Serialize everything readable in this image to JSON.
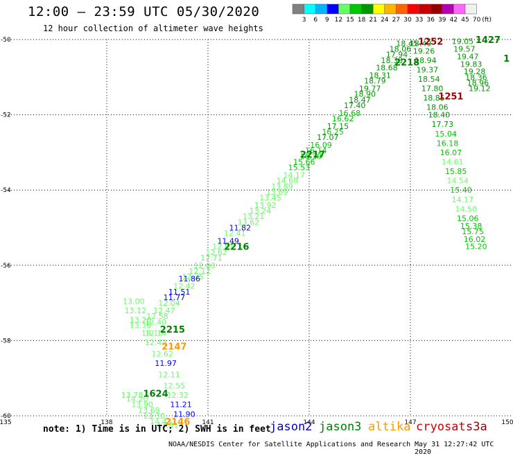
{
  "header": {
    "title": "12:00 – 23:59 UTC 05/30/2020",
    "subtitle": "12 hour collection of altimeter wave heights"
  },
  "footer": {
    "note": "note: 1) Time is in UTC; 2) SWH is in feet",
    "credit": "NOAA/NESDIS Center for Satellite Applications and Research",
    "timestamp": "May 31 12:27:42 UTC 2020"
  },
  "legend_scale": {
    "labels": [
      "3",
      "6",
      "9",
      "12",
      "15",
      "18",
      "21",
      "24",
      "27",
      "30",
      "33",
      "36",
      "39",
      "42",
      "45",
      "70",
      "(ft)"
    ],
    "colors": [
      "#808080",
      "#00ffff",
      "#00b4ff",
      "#0000ff",
      "#64ff64",
      "#00c800",
      "#009600",
      "#ffff00",
      "#ffb400",
      "#ff6400",
      "#ff0000",
      "#c80000",
      "#960000",
      "#b400b4",
      "#ff64ff",
      "#f0f0f0",
      "#000000"
    ]
  },
  "satellites": [
    {
      "name": "jason2",
      "color": "#0000cc"
    },
    {
      "name": "jason3",
      "color": "#008000"
    },
    {
      "name": "altika",
      "color": "#ff9900"
    },
    {
      "name": "cryosat",
      "color": "#cc0000"
    },
    {
      "name": "s3a",
      "color": "#990000"
    }
  ],
  "chart_data": {
    "type": "scatter",
    "x_label": "",
    "y_label": "",
    "xlim": [
      135,
      150
    ],
    "ylim": [
      -60,
      -50
    ],
    "x_ticks": [
      "135",
      "138",
      "141",
      "144",
      "147",
      "150"
    ],
    "y_ticks": [
      "-50",
      "-52",
      "-54",
      "-56",
      "-58",
      "-60"
    ],
    "grid": true,
    "points": [
      {
        "lon": 146.9,
        "lat": -50.1,
        "text": "18.45",
        "color": "#009600"
      },
      {
        "lon": 146.7,
        "lat": -50.25,
        "text": "18.06",
        "color": "#009600"
      },
      {
        "lon": 146.6,
        "lat": -50.4,
        "text": "17.94",
        "color": "#009600"
      },
      {
        "lon": 146.45,
        "lat": -50.55,
        "text": "18.38",
        "color": "#009600"
      },
      {
        "lon": 146.3,
        "lat": -50.75,
        "text": "18.68",
        "color": "#009600"
      },
      {
        "lon": 146.1,
        "lat": -50.95,
        "text": "18.31",
        "color": "#009600"
      },
      {
        "lon": 145.95,
        "lat": -51.1,
        "text": "18.79",
        "color": "#009600"
      },
      {
        "lon": 145.8,
        "lat": -51.3,
        "text": "19.77",
        "color": "#009600"
      },
      {
        "lon": 145.65,
        "lat": -51.45,
        "text": "18.90",
        "color": "#009600"
      },
      {
        "lon": 145.5,
        "lat": -51.6,
        "text": "18.47",
        "color": "#009600"
      },
      {
        "lon": 145.35,
        "lat": -51.75,
        "text": "17.40",
        "color": "#009600"
      },
      {
        "lon": 145.2,
        "lat": -51.95,
        "text": "16.68",
        "color": "#00c800"
      },
      {
        "lon": 145.0,
        "lat": -52.1,
        "text": "16.62",
        "color": "#00c800"
      },
      {
        "lon": 144.85,
        "lat": -52.3,
        "text": "17.15",
        "color": "#009600"
      },
      {
        "lon": 144.7,
        "lat": -52.45,
        "text": "16.25",
        "color": "#00c800"
      },
      {
        "lon": 144.55,
        "lat": -52.6,
        "text": "17.07",
        "color": "#009600"
      },
      {
        "lon": 144.35,
        "lat": -52.8,
        "text": "16.09",
        "color": "#00c800"
      },
      {
        "lon": 144.2,
        "lat": -52.95,
        "text": "16.14",
        "color": "#00c800"
      },
      {
        "lon": 144.05,
        "lat": -53.1,
        "text": "16.39",
        "color": "#00c800"
      },
      {
        "lon": 143.85,
        "lat": -53.25,
        "text": "15.66",
        "color": "#00c800"
      },
      {
        "lon": 143.7,
        "lat": -53.4,
        "text": "15.53",
        "color": "#00c800"
      },
      {
        "lon": 143.55,
        "lat": -53.6,
        "text": "14.17",
        "color": "#64ff64"
      },
      {
        "lon": 143.35,
        "lat": -53.75,
        "text": "14.68",
        "color": "#64ff64"
      },
      {
        "lon": 143.2,
        "lat": -53.9,
        "text": "13.89",
        "color": "#64ff64"
      },
      {
        "lon": 143.05,
        "lat": -54.05,
        "text": "13.69",
        "color": "#64ff64"
      },
      {
        "lon": 142.85,
        "lat": -54.2,
        "text": "13.45",
        "color": "#64ff64"
      },
      {
        "lon": 142.7,
        "lat": -54.4,
        "text": "13.92",
        "color": "#64ff64"
      },
      {
        "lon": 142.55,
        "lat": -54.55,
        "text": "13.24",
        "color": "#64ff64"
      },
      {
        "lon": 142.35,
        "lat": -54.7,
        "text": "13.21",
        "color": "#64ff64"
      },
      {
        "lon": 142.2,
        "lat": -54.85,
        "text": "13.62",
        "color": "#64ff64"
      },
      {
        "lon": 141.95,
        "lat": -55.0,
        "text": "11.82",
        "color": "#0000ff"
      },
      {
        "lon": 141.8,
        "lat": -55.15,
        "text": "12.41",
        "color": "#64ff64"
      },
      {
        "lon": 141.6,
        "lat": -55.35,
        "text": "11.49",
        "color": "#0000ff"
      },
      {
        "lon": 141.45,
        "lat": -55.5,
        "text": "12.81",
        "color": "#64ff64"
      },
      {
        "lon": 141.25,
        "lat": -55.65,
        "text": "12.62",
        "color": "#64ff64"
      },
      {
        "lon": 141.1,
        "lat": -55.8,
        "text": "12.71",
        "color": "#64ff64"
      },
      {
        "lon": 140.9,
        "lat": -56.0,
        "text": "12.03",
        "color": "#64ff64"
      },
      {
        "lon": 140.75,
        "lat": -56.15,
        "text": "12.12",
        "color": "#64ff64"
      },
      {
        "lon": 140.55,
        "lat": -56.3,
        "text": "12.35",
        "color": "#64ff64"
      },
      {
        "lon": 140.45,
        "lat": -56.35,
        "text": "11.86",
        "color": "#0000ff"
      },
      {
        "lon": 140.3,
        "lat": -56.55,
        "text": "12.42",
        "color": "#64ff64"
      },
      {
        "lon": 140.15,
        "lat": -56.7,
        "text": "11.51",
        "color": "#0000ff"
      },
      {
        "lon": 140.0,
        "lat": -56.85,
        "text": "11.77",
        "color": "#0000ff"
      },
      {
        "lon": 139.85,
        "lat": -57.0,
        "text": "12.04",
        "color": "#64ff64"
      },
      {
        "lon": 139.7,
        "lat": -57.2,
        "text": "12.47",
        "color": "#64ff64"
      },
      {
        "lon": 139.5,
        "lat": -57.35,
        "text": "12.58",
        "color": "#64ff64"
      },
      {
        "lon": 139.45,
        "lat": -57.5,
        "text": "12.40",
        "color": "#64ff64"
      },
      {
        "lon": 139.45,
        "lat": -57.8,
        "text": "12.14",
        "color": "#64ff64"
      },
      {
        "lon": 139.45,
        "lat": -58.05,
        "text": "12.42",
        "color": "#64ff64"
      },
      {
        "lon": 139.65,
        "lat": -58.35,
        "text": "12.62",
        "color": "#64ff64"
      },
      {
        "lon": 139.75,
        "lat": -58.6,
        "text": "11.97",
        "color": "#0000ff"
      },
      {
        "lon": 139.85,
        "lat": -58.9,
        "text": "12.11",
        "color": "#64ff64"
      },
      {
        "lon": 140.0,
        "lat": -59.2,
        "text": "12.55",
        "color": "#64ff64"
      },
      {
        "lon": 140.1,
        "lat": -59.45,
        "text": "12.32",
        "color": "#64ff64"
      },
      {
        "lon": 140.2,
        "lat": -59.7,
        "text": "11.21",
        "color": "#0000ff"
      },
      {
        "lon": 140.3,
        "lat": -59.95,
        "text": "11.90",
        "color": "#0000ff"
      },
      {
        "lon": 138.8,
        "lat": -56.95,
        "text": "13.00",
        "color": "#64ff64"
      },
      {
        "lon": 138.85,
        "lat": -57.2,
        "text": "13.12",
        "color": "#64ff64"
      },
      {
        "lon": 139.0,
        "lat": -57.45,
        "text": "13.26",
        "color": "#64ff64"
      },
      {
        "lon": 139.0,
        "lat": -57.6,
        "text": "13.16",
        "color": "#64ff64"
      },
      {
        "lon": 139.35,
        "lat": -57.8,
        "text": "13.10",
        "color": "#64ff64"
      },
      {
        "lon": 138.75,
        "lat": -59.45,
        "text": "13.78",
        "color": "#64ff64"
      },
      {
        "lon": 138.9,
        "lat": -59.55,
        "text": "14.20",
        "color": "#64ff64"
      },
      {
        "lon": 139.05,
        "lat": -59.7,
        "text": "13.90",
        "color": "#64ff64"
      },
      {
        "lon": 139.25,
        "lat": -59.85,
        "text": "13.69",
        "color": "#64ff64"
      },
      {
        "lon": 139.4,
        "lat": -60.0,
        "text": "13.30",
        "color": "#64ff64"
      },
      {
        "lon": 139.6,
        "lat": -60.15,
        "text": "14.43",
        "color": "#64ff64"
      },
      {
        "lon": 139.8,
        "lat": -60.25,
        "text": "13.81",
        "color": "#64ff64"
      },
      {
        "lon": 147.3,
        "lat": -50.1,
        "text": "18.49",
        "color": "#009600"
      },
      {
        "lon": 147.4,
        "lat": -50.3,
        "text": "19.26",
        "color": "#009600"
      },
      {
        "lon": 147.45,
        "lat": -50.55,
        "text": "18.94",
        "color": "#009600"
      },
      {
        "lon": 147.5,
        "lat": -50.8,
        "text": "19.37",
        "color": "#009600"
      },
      {
        "lon": 147.55,
        "lat": -51.05,
        "text": "18.54",
        "color": "#009600"
      },
      {
        "lon": 147.65,
        "lat": -51.3,
        "text": "17.80",
        "color": "#009600"
      },
      {
        "lon": 147.7,
        "lat": -51.55,
        "text": "18.85",
        "color": "#009600"
      },
      {
        "lon": 147.8,
        "lat": -51.8,
        "text": "18.06",
        "color": "#009600"
      },
      {
        "lon": 147.85,
        "lat": -52.0,
        "text": "18.40",
        "color": "#009600"
      },
      {
        "lon": 147.95,
        "lat": -52.25,
        "text": "17.73",
        "color": "#009600"
      },
      {
        "lon": 148.05,
        "lat": -52.5,
        "text": "15.04",
        "color": "#00c800"
      },
      {
        "lon": 148.1,
        "lat": -52.75,
        "text": "16.18",
        "color": "#00c800"
      },
      {
        "lon": 148.2,
        "lat": -53.0,
        "text": "16.07",
        "color": "#00c800"
      },
      {
        "lon": 148.25,
        "lat": -53.25,
        "text": "14.61",
        "color": "#64ff64"
      },
      {
        "lon": 148.35,
        "lat": -53.5,
        "text": "15.85",
        "color": "#00c800"
      },
      {
        "lon": 148.4,
        "lat": -53.75,
        "text": "14.54",
        "color": "#64ff64"
      },
      {
        "lon": 148.5,
        "lat": -54.0,
        "text": "15.40",
        "color": "#00c800"
      },
      {
        "lon": 148.55,
        "lat": -54.25,
        "text": "14.17",
        "color": "#64ff64"
      },
      {
        "lon": 148.65,
        "lat": -54.5,
        "text": "14.50",
        "color": "#64ff64"
      },
      {
        "lon": 148.7,
        "lat": -54.75,
        "text": "15.06",
        "color": "#00c800"
      },
      {
        "lon": 148.8,
        "lat": -54.95,
        "text": "15.38",
        "color": "#00c800"
      },
      {
        "lon": 148.85,
        "lat": -55.1,
        "text": "15.75",
        "color": "#00c800"
      },
      {
        "lon": 148.9,
        "lat": -55.3,
        "text": "16.02",
        "color": "#00c800"
      },
      {
        "lon": 148.95,
        "lat": -55.5,
        "text": "15.20",
        "color": "#00c800"
      },
      {
        "lon": 148.55,
        "lat": -50.05,
        "text": "19.05",
        "color": "#009600"
      },
      {
        "lon": 148.6,
        "lat": -50.25,
        "text": "19.57",
        "color": "#009600"
      },
      {
        "lon": 148.7,
        "lat": -50.45,
        "text": "19.47",
        "color": "#009600"
      },
      {
        "lon": 148.8,
        "lat": -50.65,
        "text": "19.83",
        "color": "#009600"
      },
      {
        "lon": 148.9,
        "lat": -50.85,
        "text": "19.28",
        "color": "#009600"
      },
      {
        "lon": 148.95,
        "lat": -51.0,
        "text": "18.36",
        "color": "#009600"
      },
      {
        "lon": 149.0,
        "lat": -51.15,
        "text": "18.96",
        "color": "#009600"
      },
      {
        "lon": 149.05,
        "lat": -51.3,
        "text": "19.12",
        "color": "#009600"
      }
    ],
    "track_labels": [
      {
        "lon": 146.9,
        "lat": -50.6,
        "text": "2218",
        "color": "#008000"
      },
      {
        "lon": 144.1,
        "lat": -53.05,
        "text": "2217",
        "color": "#008000"
      },
      {
        "lon": 141.85,
        "lat": -55.5,
        "text": "2216",
        "color": "#008000"
      },
      {
        "lon": 139.95,
        "lat": -57.7,
        "text": "2215",
        "color": "#008000"
      },
      {
        "lon": 140.0,
        "lat": -58.15,
        "text": "2147",
        "color": "#ff9900"
      },
      {
        "lon": 139.45,
        "lat": -59.4,
        "text": "1624",
        "color": "#008000"
      },
      {
        "lon": 140.1,
        "lat": -60.15,
        "text": "2146",
        "color": "#ff9900"
      },
      {
        "lon": 147.6,
        "lat": -50.05,
        "text": "1252",
        "color": "#990000"
      },
      {
        "lon": 148.2,
        "lat": -51.5,
        "text": "1251",
        "color": "#990000"
      },
      {
        "lon": 149.3,
        "lat": -50.0,
        "text": "1427",
        "color": "#008000"
      },
      {
        "lon": 149.85,
        "lat": -50.5,
        "text": "1",
        "color": "#008000"
      }
    ]
  }
}
